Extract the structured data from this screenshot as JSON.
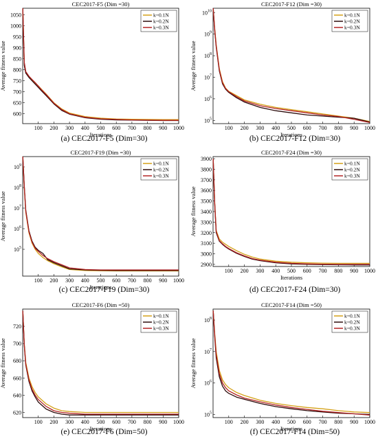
{
  "figure": {
    "background": "#ffffff"
  },
  "colors": {
    "k01": "#d4a017",
    "k02": "#2b0a0a",
    "k03": "#b22222"
  },
  "legend_labels": [
    "k=0.1N",
    "k=0.2N",
    "k=0.3N"
  ],
  "chart_data": [
    {
      "type": "line",
      "title": "CEC2017-F5 (Dim =30)",
      "caption": "(a) CEC2017-F5 (Dim=30)",
      "xlabel": "Iterations",
      "ylabel": "Average fitness value",
      "yscale": "linear",
      "xlim": [
        0,
        1000
      ],
      "ylim": [
        555,
        1080
      ],
      "xticks": [
        "100",
        "200",
        "300",
        "400",
        "500",
        "600",
        "700",
        "800",
        "900",
        "1000"
      ],
      "yticks": [
        "600",
        "650",
        "700",
        "750",
        "800",
        "850",
        "900",
        "950",
        "1000",
        "1050"
      ],
      "legend_position": "top-right",
      "x": [
        1,
        10,
        20,
        40,
        60,
        80,
        100,
        120,
        150,
        200,
        250,
        300,
        400,
        500,
        600,
        700,
        800,
        900,
        1000
      ],
      "series": [
        {
          "name": "k=0.1N",
          "color": "#d4a017",
          "values": [
            1080,
            830,
            790,
            770,
            755,
            740,
            727,
            712,
            690,
            650,
            622,
            603,
            587,
            580,
            576,
            575,
            574,
            573,
            573
          ]
        },
        {
          "name": "k=0.2N",
          "color": "#2b0a0a",
          "values": [
            1080,
            820,
            785,
            765,
            750,
            735,
            720,
            705,
            683,
            645,
            615,
            598,
            582,
            575,
            572,
            571,
            570,
            569,
            569
          ]
        },
        {
          "name": "k=0.3N",
          "color": "#b22222",
          "values": [
            1080,
            835,
            792,
            771,
            756,
            742,
            726,
            710,
            688,
            648,
            619,
            600,
            584,
            577,
            574,
            572,
            571,
            570,
            570
          ]
        }
      ]
    },
    {
      "type": "line",
      "title": "CEC2017-F12 (Dim =30)",
      "caption": "(b) CEC2017-F12 (Dim=30)",
      "xlabel": "Iterations",
      "ylabel": "Average fitness value",
      "yscale": "log",
      "xlim": [
        0,
        1000
      ],
      "ylim_log10": [
        4.85,
        10.2
      ],
      "xticks": [
        "100",
        "200",
        "300",
        "400",
        "500",
        "600",
        "700",
        "800",
        "900",
        "1000"
      ],
      "yticks": [
        "10^5",
        "10^6",
        "10^7",
        "10^8",
        "10^9",
        "10^10"
      ],
      "legend_position": "top-right",
      "x": [
        1,
        10,
        20,
        40,
        60,
        80,
        100,
        150,
        200,
        300,
        400,
        500,
        600,
        700,
        800,
        900,
        1000
      ],
      "series": [
        {
          "name": "k=0.1N",
          "color": "#d4a017",
          "log10_values": [
            10.2,
            9.3,
            8.5,
            7.4,
            6.8,
            6.5,
            6.35,
            6.15,
            5.95,
            5.75,
            5.6,
            5.5,
            5.4,
            5.3,
            5.2,
            5.1,
            4.95
          ]
        },
        {
          "name": "k=0.2N",
          "color": "#2b0a0a",
          "log10_values": [
            10.2,
            9.2,
            8.4,
            7.3,
            6.7,
            6.45,
            6.3,
            6.05,
            5.85,
            5.6,
            5.45,
            5.35,
            5.25,
            5.2,
            5.15,
            5.1,
            4.92
          ]
        },
        {
          "name": "k=0.3N",
          "color": "#b22222",
          "log10_values": [
            10.2,
            9.25,
            8.45,
            7.35,
            6.75,
            6.48,
            6.33,
            6.1,
            5.9,
            5.68,
            5.55,
            5.45,
            5.35,
            5.25,
            5.18,
            5.05,
            4.9
          ]
        }
      ]
    },
    {
      "type": "line",
      "title": "CEC2017-F19 (Dim =30)",
      "caption": "(c) CEC2017-F19 (Dim=30)",
      "xlabel": "Iterations",
      "ylabel": "Average fitness value",
      "yscale": "log",
      "xlim": [
        0,
        1000
      ],
      "ylim_log10": [
        3.7,
        9.5
      ],
      "xticks": [
        "100",
        "200",
        "300",
        "400",
        "500",
        "600",
        "700",
        "800",
        "900",
        "1000"
      ],
      "yticks": [
        "10^5",
        "10^6",
        "10^7",
        "10^8",
        "10^9"
      ],
      "legend_position": "top-right",
      "x": [
        1,
        10,
        20,
        40,
        60,
        80,
        100,
        130,
        160,
        200,
        250,
        300,
        400,
        500,
        600,
        700,
        800,
        900,
        1000
      ],
      "series": [
        {
          "name": "k=0.1N",
          "color": "#d4a017",
          "log10_values": [
            9.5,
            8.0,
            6.8,
            5.8,
            5.3,
            5.0,
            4.8,
            4.6,
            4.45,
            4.3,
            4.15,
            4.02,
            3.97,
            3.96,
            3.95,
            3.95,
            3.95,
            3.95,
            3.95
          ]
        },
        {
          "name": "k=0.2N",
          "color": "#2b0a0a",
          "log10_values": [
            9.5,
            8.1,
            6.9,
            5.9,
            5.4,
            5.1,
            4.95,
            4.8,
            4.5,
            4.35,
            4.2,
            4.05,
            4.0,
            3.98,
            3.97,
            3.97,
            3.97,
            3.97,
            3.97
          ]
        },
        {
          "name": "k=0.3N",
          "color": "#b22222",
          "log10_values": [
            9.5,
            8.05,
            6.85,
            5.85,
            5.35,
            5.05,
            4.9,
            4.7,
            4.55,
            4.4,
            4.25,
            4.1,
            4.02,
            4.0,
            4.0,
            4.0,
            4.0,
            4.0,
            4.0
          ]
        }
      ]
    },
    {
      "type": "line",
      "title": "CEC2017-F24 (Dim =30)",
      "caption": "(d) CEC2017-F24 (Dim=30)",
      "xlabel": "Iterations",
      "ylabel": "Average fitness value",
      "yscale": "linear",
      "xlim": [
        0,
        1000
      ],
      "ylim": [
        2880,
        3920
      ],
      "xticks": [
        "100",
        "200",
        "300",
        "400",
        "500",
        "600",
        "700",
        "800",
        "900",
        "1000"
      ],
      "yticks": [
        "2900",
        "3000",
        "3100",
        "3200",
        "3300",
        "3400",
        "3500",
        "3600",
        "3700",
        "3800",
        "3900"
      ],
      "legend_position": "top-right",
      "x": [
        1,
        10,
        20,
        40,
        60,
        80,
        100,
        150,
        200,
        250,
        300,
        400,
        500,
        600,
        700,
        800,
        900,
        1000
      ],
      "series": [
        {
          "name": "k=0.1N",
          "color": "#d4a017",
          "values": [
            3900,
            3500,
            3220,
            3140,
            3110,
            3090,
            3070,
            3030,
            2995,
            2970,
            2950,
            2930,
            2920,
            2915,
            2912,
            2910,
            2910,
            2910
          ]
        },
        {
          "name": "k=0.2N",
          "color": "#2b0a0a",
          "values": [
            3900,
            3480,
            3200,
            3120,
            3090,
            3065,
            3045,
            3005,
            2975,
            2950,
            2935,
            2915,
            2905,
            2900,
            2898,
            2896,
            2895,
            2895
          ]
        },
        {
          "name": "k=0.3N",
          "color": "#b22222",
          "values": [
            3900,
            3490,
            3210,
            3125,
            3095,
            3070,
            3050,
            3010,
            2980,
            2955,
            2940,
            2920,
            2910,
            2905,
            2902,
            2900,
            2900,
            2900
          ]
        }
      ]
    },
    {
      "type": "line",
      "title": "CEC2017-F6 (Dim =50)",
      "caption": "(e) CEC2017-F6 (Dim=50)",
      "xlabel": "Iterations",
      "ylabel": "Average fitness value",
      "yscale": "linear",
      "xlim": [
        0,
        1000
      ],
      "ylim": [
        614,
        740
      ],
      "xticks": [
        "100",
        "200",
        "300",
        "400",
        "500",
        "600",
        "700",
        "800",
        "900",
        "1000"
      ],
      "yticks": [
        "620",
        "640",
        "660",
        "680",
        "700",
        "720"
      ],
      "legend_position": "top-right",
      "x": [
        1,
        10,
        20,
        40,
        60,
        80,
        100,
        150,
        200,
        250,
        300,
        400,
        500,
        600,
        700,
        800,
        900,
        1000
      ],
      "series": [
        {
          "name": "k=0.1N",
          "color": "#d4a017",
          "values": [
            738,
            700,
            678,
            660,
            650,
            643,
            638,
            630,
            625,
            622,
            621,
            620,
            620,
            620,
            620,
            620,
            620,
            620
          ]
        },
        {
          "name": "k=0.2N",
          "color": "#2b0a0a",
          "values": [
            738,
            698,
            675,
            656,
            645,
            638,
            632,
            624,
            620,
            618,
            617,
            617,
            617,
            617,
            617,
            617,
            617,
            617
          ]
        },
        {
          "name": "k=0.3N",
          "color": "#b22222",
          "values": [
            738,
            699,
            676,
            658,
            647,
            640,
            635,
            627,
            622,
            620,
            619,
            618,
            618,
            618,
            618,
            618,
            618,
            618
          ]
        }
      ]
    },
    {
      "type": "line",
      "title": "CEC2017-F14 (Dim =50)",
      "caption": "(f) CEC2017-F14 (Dim=50)",
      "xlabel": "Iterations",
      "ylabel": "Average fitness value",
      "yscale": "log",
      "xlim": [
        0,
        1000
      ],
      "ylim_log10": [
        4.9,
        8.35
      ],
      "xticks": [
        "100",
        "200",
        "300",
        "400",
        "500",
        "600",
        "700",
        "800",
        "900",
        "1000"
      ],
      "yticks": [
        "10^5",
        "10^6",
        "10^7",
        "10^8"
      ],
      "legend_position": "top-right",
      "x": [
        1,
        10,
        20,
        40,
        60,
        80,
        100,
        150,
        200,
        300,
        400,
        500,
        600,
        700,
        800,
        900,
        1000
      ],
      "series": [
        {
          "name": "k=0.1N",
          "color": "#d4a017",
          "log10_values": [
            8.3,
            7.6,
            7.0,
            6.4,
            6.1,
            5.95,
            5.85,
            5.7,
            5.6,
            5.45,
            5.35,
            5.28,
            5.22,
            5.18,
            5.12,
            5.08,
            5.06
          ]
        },
        {
          "name": "k=0.2N",
          "color": "#2b0a0a",
          "log10_values": [
            8.3,
            7.5,
            6.8,
            6.2,
            5.9,
            5.75,
            5.67,
            5.55,
            5.48,
            5.35,
            5.25,
            5.18,
            5.12,
            5.08,
            5.04,
            5.02,
            5.0
          ]
        },
        {
          "name": "k=0.3N",
          "color": "#b22222",
          "log10_values": [
            8.3,
            7.55,
            6.9,
            6.3,
            6.0,
            5.85,
            5.75,
            5.62,
            5.52,
            5.4,
            5.3,
            5.22,
            5.16,
            5.1,
            5.06,
            5.02,
            4.98
          ]
        }
      ]
    }
  ]
}
